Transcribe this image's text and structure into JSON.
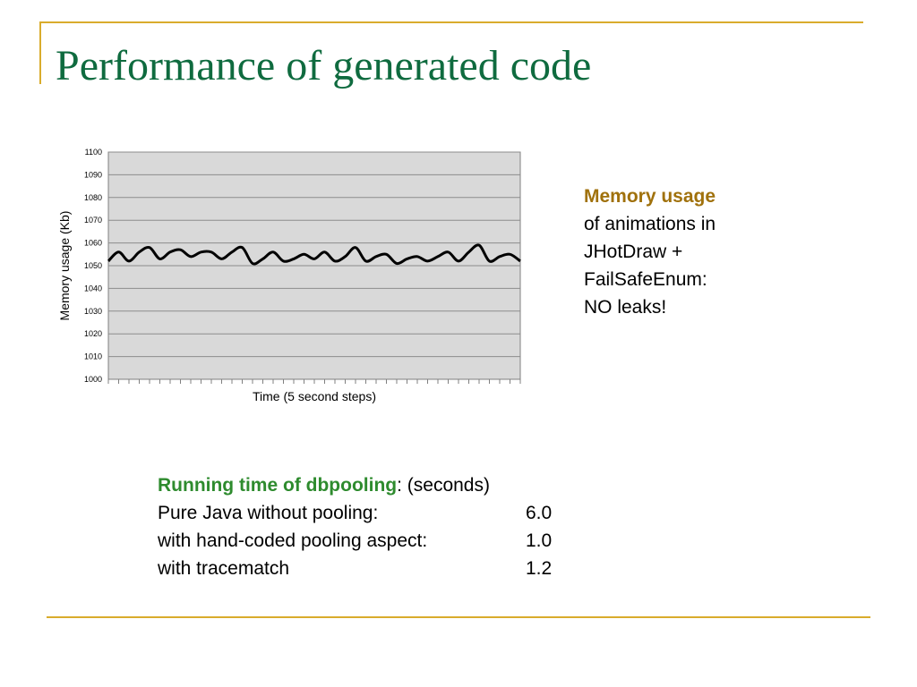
{
  "slide": {
    "title": "Performance of generated code",
    "accent_color": "#d9ac2c",
    "title_color": "#0f6b3f"
  },
  "side_note": {
    "highlight": "Memory usage",
    "lines": [
      "of animations in",
      "JHotDraw +",
      "FailSafeEnum:",
      "NO leaks!"
    ]
  },
  "timing": {
    "heading_bold": "Running time of dbpooling",
    "heading_rest": ": (seconds)",
    "rows": [
      {
        "label": "Pure Java without pooling:",
        "value": "6.0"
      },
      {
        "label": "with hand-coded pooling aspect:",
        "value": "1.0"
      },
      {
        "label": "with tracematch",
        "value": "1.2"
      }
    ]
  },
  "chart_data": {
    "type": "line",
    "title": "",
    "xlabel": "Time (5 second steps)",
    "ylabel": "Memory usage (Kb)",
    "ylim": [
      1000,
      1100
    ],
    "yticks": [
      1000,
      1010,
      1020,
      1030,
      1040,
      1050,
      1060,
      1070,
      1080,
      1090,
      1100
    ],
    "grid": true,
    "legend": "none",
    "colors": {
      "plot_bg": "#d9d9d9",
      "grid": "#8c8c8c",
      "line": "#000000"
    },
    "series": [
      {
        "values": [
          1052,
          1056,
          1052,
          1056,
          1058,
          1053,
          1056,
          1057,
          1054,
          1056,
          1056,
          1053,
          1056,
          1058,
          1051,
          1053,
          1056,
          1052,
          1053,
          1055,
          1053,
          1056,
          1052,
          1054,
          1058,
          1052,
          1054,
          1055,
          1051,
          1053,
          1054,
          1052,
          1054,
          1056,
          1052,
          1056,
          1059,
          1052,
          1054,
          1055,
          1052
        ]
      }
    ]
  }
}
